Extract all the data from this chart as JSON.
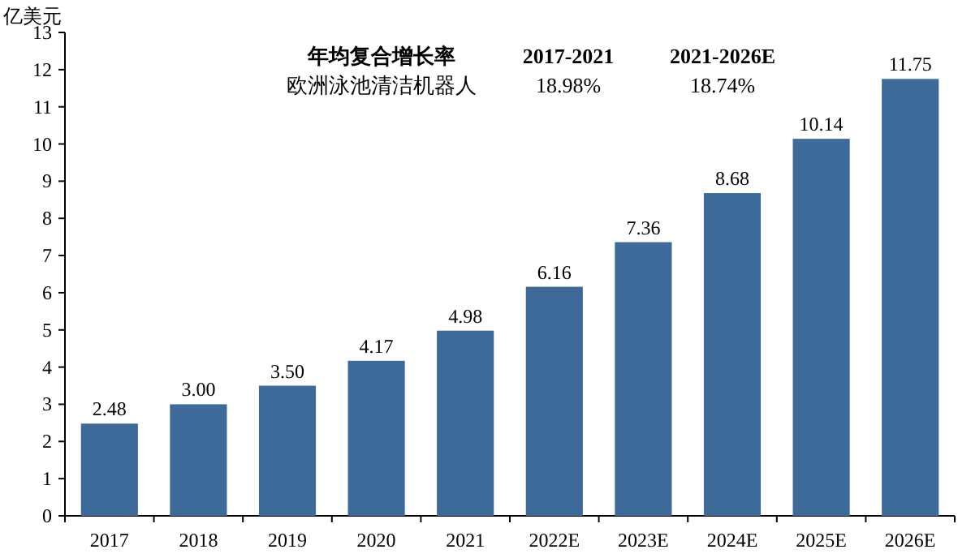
{
  "chart_data": {
    "type": "bar",
    "ylabel": "亿美元",
    "categories": [
      "2017",
      "2018",
      "2019",
      "2020",
      "2021",
      "2022E",
      "2023E",
      "2024E",
      "2025E",
      "2026E"
    ],
    "values": [
      2.48,
      3.0,
      3.5,
      4.17,
      4.98,
      6.16,
      7.36,
      8.68,
      10.14,
      11.75
    ],
    "value_labels": [
      "2.48",
      "3.00",
      "3.50",
      "4.17",
      "4.98",
      "6.16",
      "7.36",
      "8.68",
      "10.14",
      "11.75"
    ],
    "color": "#3e6a99",
    "ylim": [
      0,
      13
    ],
    "yticks": [
      0,
      1,
      2,
      3,
      4,
      5,
      6,
      7,
      8,
      9,
      10,
      11,
      12,
      13
    ],
    "annotations": [
      "年均复合增长率",
      "2017-2021",
      "2021-2026E",
      "欧洲泳池清洁机器人",
      "18.98%",
      "18.74%"
    ]
  }
}
